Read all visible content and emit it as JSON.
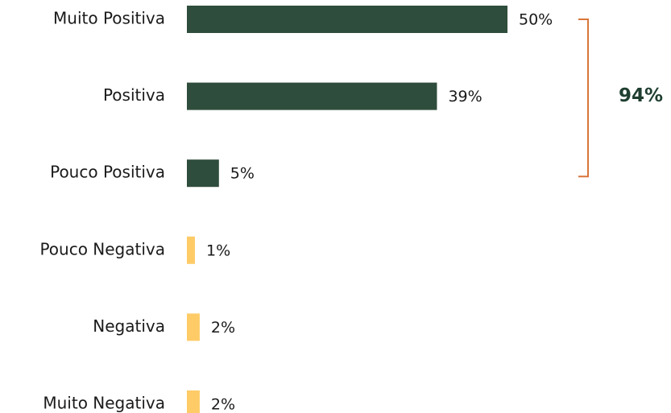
{
  "chart_data": {
    "type": "bar",
    "orientation": "horizontal",
    "categories": [
      "Muito Positiva",
      "Positiva",
      "Pouco Positiva",
      "Pouco Negativa",
      "Negativa",
      "Muito Negativa"
    ],
    "values": [
      50,
      39,
      5,
      1,
      2,
      2
    ],
    "value_labels": [
      "50%",
      "39%",
      "5%",
      "1%",
      "2%",
      "2%"
    ],
    "unit": "%",
    "bar_colors": [
      "#2f4d3c",
      "#2f4d3c",
      "#2f4d3c",
      "#fecb67",
      "#fecb67",
      "#fecb67"
    ],
    "grid": false,
    "annotation": {
      "text": "94%",
      "spans_categories": [
        "Muito Positiva",
        "Positiva",
        "Pouco Positiva"
      ],
      "bracket_color": "#d9753a",
      "text_color": "#1f3e30"
    }
  }
}
